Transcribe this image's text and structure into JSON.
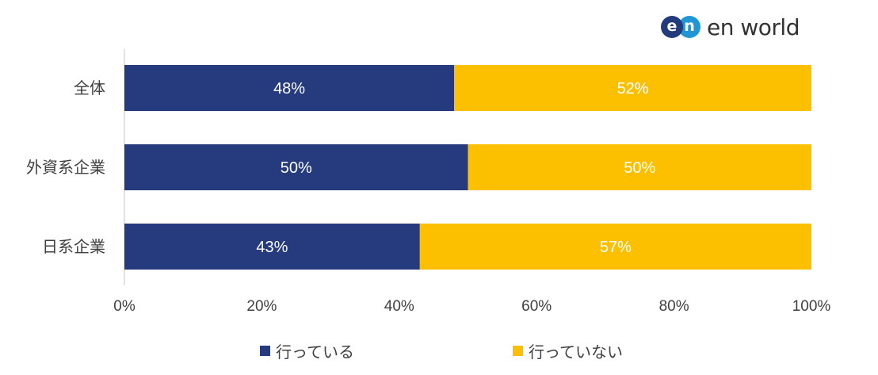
{
  "logo": {
    "mark_e": "e",
    "mark_n": "n",
    "text": "en world"
  },
  "colors": {
    "series_1": "#263a7e",
    "series_2": "#fdc000",
    "axis": "#d9d9d9",
    "text": "#404040",
    "bar_label": "#ffffff"
  },
  "chart_data": {
    "type": "bar",
    "orientation": "horizontal",
    "stacked": true,
    "categories": [
      "全体",
      "外資系企業",
      "日系企業"
    ],
    "series": [
      {
        "name": "行っている",
        "values": [
          48,
          50,
          43
        ],
        "labels": [
          "48%",
          "50%",
          "43%"
        ]
      },
      {
        "name": "行っていない",
        "values": [
          52,
          50,
          57
        ],
        "labels": [
          "52%",
          "50%",
          "57%"
        ]
      }
    ],
    "xlim": [
      0,
      100
    ],
    "xticks": [
      "0%",
      "20%",
      "40%",
      "60%",
      "80%",
      "100%"
    ],
    "grid": false,
    "legend_position": "bottom"
  }
}
